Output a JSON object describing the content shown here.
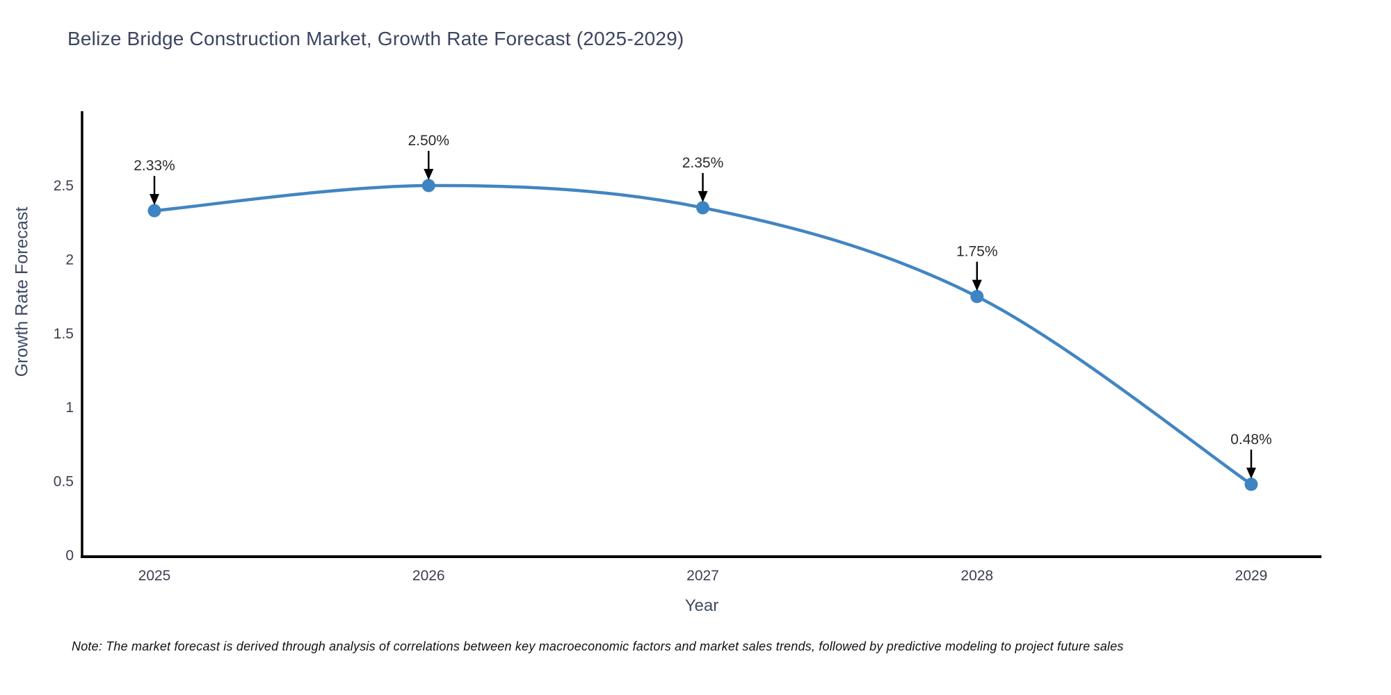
{
  "page": {
    "title": "Belize Bridge Construction Market, Growth Rate Forecast (2025-2029)",
    "note": "Note: The market forecast is derived through analysis of correlations between key macroeconomic factors and market sales trends, followed by predictive modeling to project future sales"
  },
  "chart_data": {
    "type": "line",
    "title": "Belize Bridge Construction Market, Growth Rate Forecast (2025-2029)",
    "x": [
      2025,
      2026,
      2027,
      2028,
      2029
    ],
    "series": [
      {
        "name": "Growth Rate Forecast",
        "values": [
          2.33,
          2.5,
          2.35,
          1.75,
          0.48
        ]
      }
    ],
    "point_labels": [
      "2.33%",
      "2.50%",
      "2.35%",
      "1.75%",
      "0.48%"
    ],
    "xlabel": "Year",
    "ylabel": "Growth Rate Forecast",
    "ylim": [
      0,
      3.0
    ],
    "yticks": [
      0,
      0.5,
      1,
      1.5,
      2,
      2.5
    ],
    "ytick_labels": [
      "0",
      "0.5",
      "1",
      "1.5",
      "2",
      "2.5"
    ],
    "xtick_labels": [
      "2025",
      "2026",
      "2027",
      "2028",
      "2029"
    ],
    "grid": false,
    "legend": "none",
    "line_smoothing": true,
    "colors": {
      "line": "#4285c2",
      "marker": "#3d84c3",
      "axis": "#000000",
      "arrow": "#000000",
      "tick_label": "#3a4050",
      "axis_label": "#3e4a66",
      "title": "#3b4563",
      "annotation": "#2b2b2b",
      "note": "#111111"
    }
  }
}
